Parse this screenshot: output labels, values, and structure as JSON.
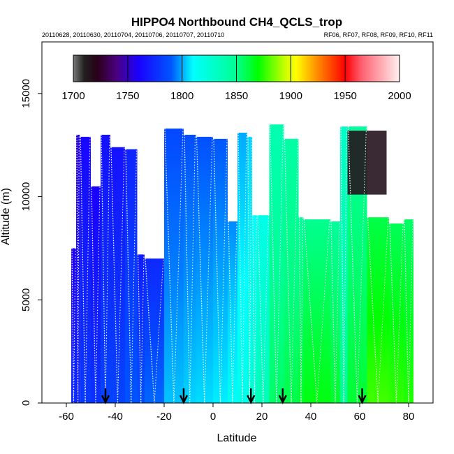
{
  "chart_data": {
    "type": "heatmap",
    "title": "HIPPO4 Northbound CH4_QCLS_trop",
    "subtitle_left": "20110628, 20110630, 20110704, 20110706, 20110707, 20110710",
    "subtitle_right": "RF06, RF07, RF08, RF09, RF10, RF11",
    "xlabel": "Latitude",
    "ylabel": "Altitude (m)",
    "xlim": [
      -70,
      90
    ],
    "ylim": [
      0,
      17500
    ],
    "x_ticks": [
      -60,
      -40,
      -20,
      0,
      20,
      40,
      60,
      80
    ],
    "y_ticks": [
      0,
      5000,
      10000,
      15000
    ],
    "colorbar": {
      "label_ticks": [
        1700,
        1750,
        1800,
        1850,
        1900,
        1950,
        2000
      ],
      "range": [
        1700,
        2000
      ],
      "stops": [
        {
          "v": 1700,
          "c": "#7a7a7a"
        },
        {
          "v": 1710,
          "c": "#202020"
        },
        {
          "v": 1722,
          "c": "#2a0018"
        },
        {
          "v": 1740,
          "c": "#4a0080"
        },
        {
          "v": 1760,
          "c": "#1a00ff"
        },
        {
          "v": 1790,
          "c": "#0055ff"
        },
        {
          "v": 1810,
          "c": "#00ffff"
        },
        {
          "v": 1850,
          "c": "#00ff90"
        },
        {
          "v": 1870,
          "c": "#00ff00"
        },
        {
          "v": 1895,
          "c": "#ccff00"
        },
        {
          "v": 1905,
          "c": "#ffff00"
        },
        {
          "v": 1925,
          "c": "#ff8800"
        },
        {
          "v": 1950,
          "c": "#ff0000"
        },
        {
          "v": 1965,
          "c": "#ff6070"
        },
        {
          "v": 2000,
          "c": "#fff0f0"
        }
      ]
    },
    "flight_markers_latitude": [
      -44,
      -12,
      15.5,
      28.5,
      61
    ],
    "columns": [
      {
        "x0": -58,
        "x1": -56,
        "top": 7500,
        "ch4": 1768
      },
      {
        "x0": -56,
        "x1": -54.5,
        "top": 13000,
        "ch4": 1765
      },
      {
        "x0": -54.5,
        "x1": -50,
        "top": 12900,
        "ch4": 1772
      },
      {
        "x0": -50,
        "x1": -46,
        "top": 10500,
        "ch4": 1770
      },
      {
        "x0": -46,
        "x1": -42,
        "top": 13000,
        "ch4": 1776
      },
      {
        "x0": -42,
        "x1": -36,
        "top": 12400,
        "ch4": 1776
      },
      {
        "x0": -36,
        "x1": -31,
        "top": 12300,
        "ch4": 1782
      },
      {
        "x0": -31,
        "x1": -28,
        "top": 7200,
        "ch4": 1780
      },
      {
        "x0": -28,
        "x1": -20,
        "top": 7000,
        "ch4": 1784
      },
      {
        "x0": -20,
        "x1": -12,
        "top": 13300,
        "ch4": 1795
      },
      {
        "x0": -12,
        "x1": -7,
        "top": 13000,
        "ch4": 1797
      },
      {
        "x0": -7,
        "x1": 0,
        "top": 12900,
        "ch4": 1798
      },
      {
        "x0": 0,
        "x1": 6,
        "top": 12800,
        "ch4": 1800
      },
      {
        "x0": 6,
        "x1": 10,
        "top": 8800,
        "ch4": 1806
      },
      {
        "x0": 10,
        "x1": 14,
        "top": 13100,
        "ch4": 1810
      },
      {
        "x0": 14,
        "x1": 16,
        "top": 12900,
        "ch4": 1815
      },
      {
        "x0": 16,
        "x1": 18,
        "top": 9100,
        "ch4": 1822
      },
      {
        "x0": 18,
        "x1": 23,
        "top": 9100,
        "ch4": 1828
      },
      {
        "x0": 23,
        "x1": 29,
        "top": 13500,
        "ch4": 1848
      },
      {
        "x0": 29,
        "x1": 35,
        "top": 12800,
        "ch4": 1852
      },
      {
        "x0": 35,
        "x1": 37,
        "top": 9000,
        "ch4": 1856
      },
      {
        "x0": 37,
        "x1": 48,
        "top": 8900,
        "ch4": 1860
      },
      {
        "x0": 48,
        "x1": 52,
        "top": 8800,
        "ch4": 1856
      },
      {
        "x0": 52,
        "x1": 55,
        "top": 13400,
        "ch4": 1840
      },
      {
        "x0": 55,
        "x1": 63,
        "top": 13400,
        "ch4": 1855
      },
      {
        "x0": 63,
        "x1": 72,
        "top": 9000,
        "ch4": 1870
      },
      {
        "x0": 72,
        "x1": 78,
        "top": 8700,
        "ch4": 1868
      },
      {
        "x0": 78,
        "x1": 82,
        "top": 8900,
        "ch4": 1866
      }
    ],
    "stratospheric_patch": {
      "x0": 55,
      "x1": 71,
      "y0": 10100,
      "y1": 13200,
      "ch4": 1715
    }
  }
}
